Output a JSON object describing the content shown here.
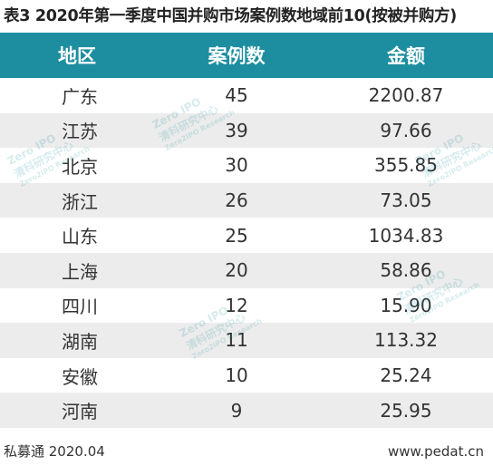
{
  "title": "表3 2020年第一季度中国并购市场案例数地域前10(按被并购方)",
  "columns": [
    "地区",
    "案例数",
    "金额"
  ],
  "rows": [
    {
      "region": "广东",
      "count": "45",
      "amount": "2200.87"
    },
    {
      "region": "江苏",
      "count": "39",
      "amount": "97.66"
    },
    {
      "region": "北京",
      "count": "30",
      "amount": "355.85"
    },
    {
      "region": "浙江",
      "count": "26",
      "amount": "73.05"
    },
    {
      "region": "山东",
      "count": "25",
      "amount": "1034.83"
    },
    {
      "region": "上海",
      "count": "20",
      "amount": "58.86"
    },
    {
      "region": "四川",
      "count": "12",
      "amount": "15.90"
    },
    {
      "region": "湖南",
      "count": "11",
      "amount": "113.32"
    },
    {
      "region": "安徽",
      "count": "10",
      "amount": "25.24"
    },
    {
      "region": "河南",
      "count": "9",
      "amount": "25.95"
    }
  ],
  "footer": {
    "source": "私募通 2020.04",
    "website": "www.pedat.cn"
  },
  "watermark": {
    "brand": "Zero IPO",
    "cn": "清科研究中心",
    "en": "Zero2IPO Research"
  }
}
